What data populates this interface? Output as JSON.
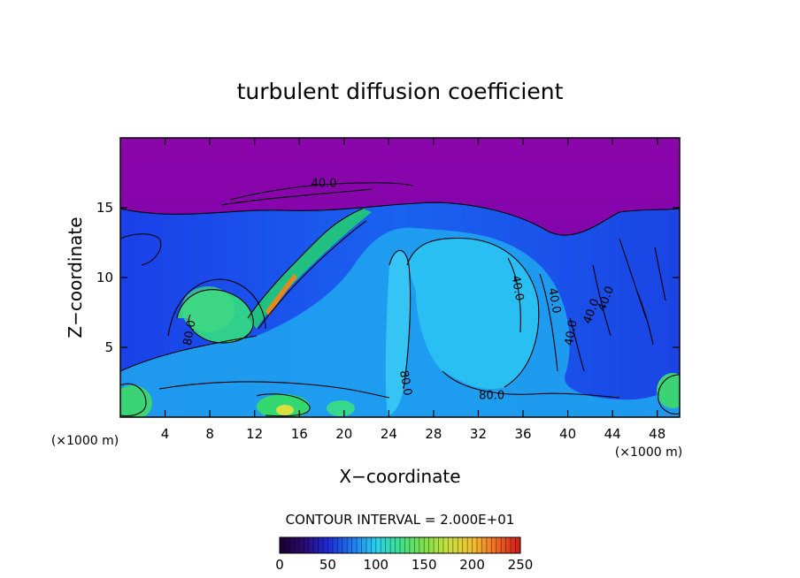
{
  "chart_data": {
    "type": "heatmap",
    "title": "turbulent diffusion coefficient",
    "xlabel": "X−coordinate",
    "ylabel": "Z−coordinate",
    "x_unit_left": "(×1000 m)",
    "x_unit_right": "(×1000 m)",
    "xlim": [
      0,
      50
    ],
    "ylim": [
      0,
      20
    ],
    "x_ticks": [
      4,
      8,
      12,
      16,
      20,
      24,
      28,
      32,
      36,
      40,
      44,
      48
    ],
    "y_ticks": [
      5,
      10,
      15
    ],
    "contour_interval_text": "CONTOUR INTERVAL = 2.000E+01",
    "contour_labels": [
      {
        "text": "40.0",
        "x": 18.2,
        "y": 16.5,
        "angle": 0
      },
      {
        "text": "80.0",
        "x": 6.5,
        "y": 6.0,
        "angle": -80
      },
      {
        "text": "80.0",
        "x": 25.2,
        "y": 2.4,
        "angle": 80
      },
      {
        "text": "80.0",
        "x": 33.2,
        "y": 1.3,
        "angle": 0
      },
      {
        "text": "40.0",
        "x": 35.2,
        "y": 9.2,
        "angle": 80
      },
      {
        "text": "40.0",
        "x": 38.5,
        "y": 8.3,
        "angle": 80
      },
      {
        "text": "40.0",
        "x": 40.6,
        "y": 6.0,
        "angle": -80
      },
      {
        "text": "40.0",
        "x": 42.4,
        "y": 7.5,
        "angle": -70
      },
      {
        "text": "40.0",
        "x": 43.7,
        "y": 8.4,
        "angle": -70
      }
    ],
    "colorbar": {
      "min": 0,
      "max": 250,
      "ticks": [
        0,
        50,
        100,
        150,
        200,
        250
      ],
      "colors": [
        "#1a0030",
        "#2a0a70",
        "#1e2ad8",
        "#1e78f0",
        "#2ad0f0",
        "#3ee08c",
        "#7ee04a",
        "#c8e040",
        "#f0c030",
        "#f06a20",
        "#d01818"
      ]
    },
    "background_colors": {
      "upper": "#8a05aa",
      "lower": "#1a34e0",
      "eddy": "#22b8f4",
      "high": "#30d88a"
    }
  }
}
